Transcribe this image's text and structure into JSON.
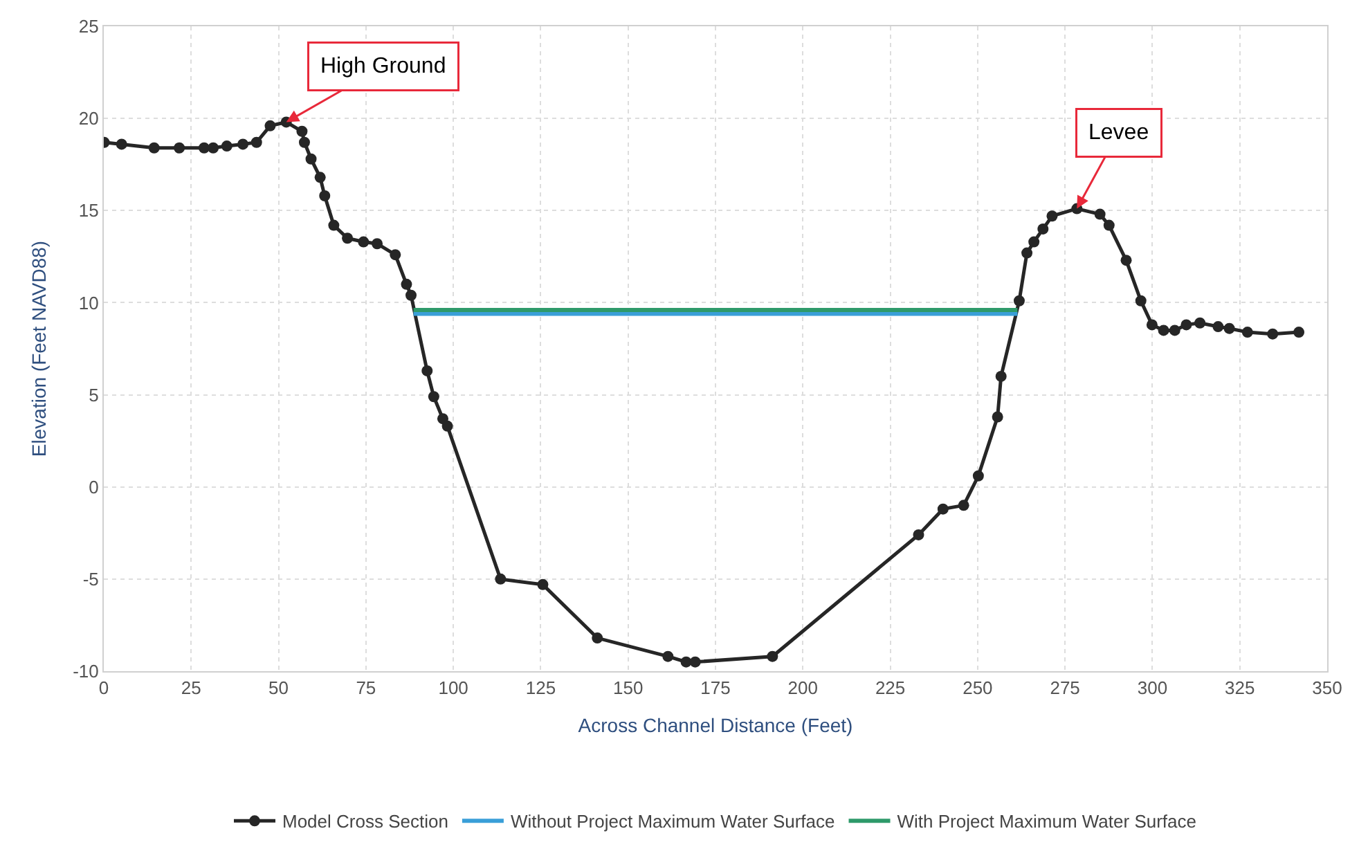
{
  "chart_data": {
    "type": "line",
    "xlabel": "Across Channel Distance (Feet)",
    "ylabel": "Elevation (Feet NAVD88)",
    "xlim": [
      0,
      350
    ],
    "xticks": [
      0,
      25,
      50,
      75,
      100,
      125,
      150,
      175,
      200,
      225,
      250,
      275,
      300,
      325,
      350
    ],
    "ylim": [
      -10,
      25
    ],
    "yticks": [
      -10,
      -5,
      0,
      5,
      10,
      15,
      20,
      25
    ],
    "grid": true,
    "legend": "bottom",
    "series": [
      {
        "name": "Model Cross Section",
        "color": "#262626",
        "marker": "circle",
        "x": [
          0.1,
          5.1,
          14.4,
          21.6,
          28.7,
          31.3,
          35.2,
          39.8,
          43.7,
          47.6,
          52.2,
          56.7,
          57.4,
          59.3,
          61.9,
          63.2,
          65.8,
          69.7,
          74.3,
          78.2,
          83.4,
          86.6,
          87.9,
          92.5,
          94.4,
          97,
          98.3,
          113.5,
          125.6,
          141.2,
          161.4,
          166.6,
          169.2,
          191.3,
          233.1,
          240.1,
          246,
          250.2,
          255.7,
          256.7,
          261.9,
          264.1,
          266.1,
          268.7,
          271.3,
          278.4,
          285,
          287.6,
          292.5,
          296.7,
          299.9,
          303.2,
          306.4,
          309.7,
          313.6,
          318.8,
          322,
          327.2,
          334.4,
          341.9
        ],
        "values": [
          18.7,
          18.6,
          18.4,
          18.4,
          18.4,
          18.4,
          18.5,
          18.6,
          18.7,
          19.6,
          19.8,
          19.3,
          18.7,
          17.8,
          16.8,
          15.8,
          14.2,
          13.5,
          13.3,
          13.2,
          12.6,
          11.0,
          10.4,
          6.3,
          4.9,
          3.7,
          3.3,
          -5.0,
          -5.3,
          -8.2,
          -9.2,
          -9.5,
          -9.5,
          -9.2,
          -2.6,
          -1.2,
          -1.0,
          0.6,
          3.8,
          6.0,
          10.1,
          12.7,
          13.3,
          14.0,
          14.7,
          15.1,
          14.8,
          14.2,
          12.3,
          10.1,
          8.8,
          8.5,
          8.5,
          8.8,
          8.9,
          8.7,
          8.6,
          8.4,
          8.3,
          8.4
        ]
      },
      {
        "name": "Without Project Maximum Water Surface",
        "color": "#3a9fd8",
        "marker": "none",
        "x": [
          88.6,
          261.4
        ],
        "values": [
          9.4,
          9.4
        ]
      },
      {
        "name": "With Project Maximum Water Surface",
        "color": "#2e9a6a",
        "marker": "none",
        "x": [
          88.6,
          261.4
        ],
        "values": [
          9.6,
          9.6
        ]
      }
    ],
    "annotations": [
      {
        "text": "High Ground",
        "x": 52.2,
        "y": 19.8
      },
      {
        "text": "Levee",
        "x": 278.4,
        "y": 15.1
      }
    ]
  }
}
